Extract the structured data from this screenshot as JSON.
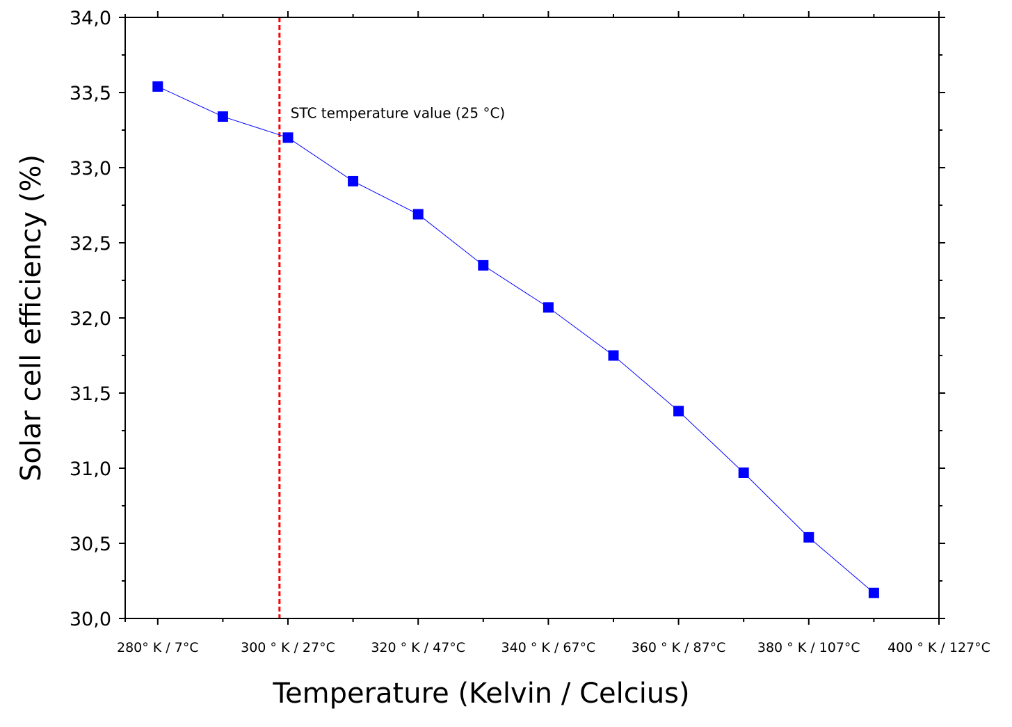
{
  "chart_data": {
    "type": "line",
    "xlabel": "Temperature (Kelvin / Celcius)",
    "ylabel": "Solar cell efficiency (%)",
    "xlim": [
      275,
      400
    ],
    "ylim": [
      30.0,
      34.0
    ],
    "x_ticks": [
      {
        "value": 280,
        "label": "280° K / 7°C"
      },
      {
        "value": 300,
        "label": "300 ° K / 27°C"
      },
      {
        "value": 320,
        "label": "320 ° K / 47°C"
      },
      {
        "value": 340,
        "label": "340 ° K / 67°C"
      },
      {
        "value": 360,
        "label": "360 ° K / 87°C"
      },
      {
        "value": 380,
        "label": "380 ° K / 107°C"
      },
      {
        "value": 400,
        "label": "400 ° K / 127°C"
      }
    ],
    "y_ticks": [
      {
        "value": 30.0,
        "label": "30,0"
      },
      {
        "value": 30.5,
        "label": "30,5"
      },
      {
        "value": 31.0,
        "label": "31,0"
      },
      {
        "value": 31.5,
        "label": "31,5"
      },
      {
        "value": 32.0,
        "label": "32,0"
      },
      {
        "value": 32.5,
        "label": "32,5"
      },
      {
        "value": 33.0,
        "label": "33,0"
      },
      {
        "value": 33.5,
        "label": "33,5"
      },
      {
        "value": 34.0,
        "label": "34,0"
      }
    ],
    "series": [
      {
        "x": [
          280,
          290,
          300,
          310,
          320,
          330,
          340,
          350,
          360,
          370,
          380,
          390
        ],
        "y": [
          33.54,
          33.34,
          33.2,
          32.91,
          32.69,
          32.35,
          32.07,
          31.75,
          31.38,
          30.97,
          30.54,
          30.17
        ],
        "color": "#0000ff",
        "marker": "square"
      }
    ],
    "reference_line": {
      "x": 298.7,
      "color": "#ff0000",
      "style": "dashed"
    },
    "annotation": {
      "text": "STC temperature value (25 °C)",
      "x": 300.4,
      "y": 33.33
    },
    "grid": false,
    "legend": "none"
  }
}
